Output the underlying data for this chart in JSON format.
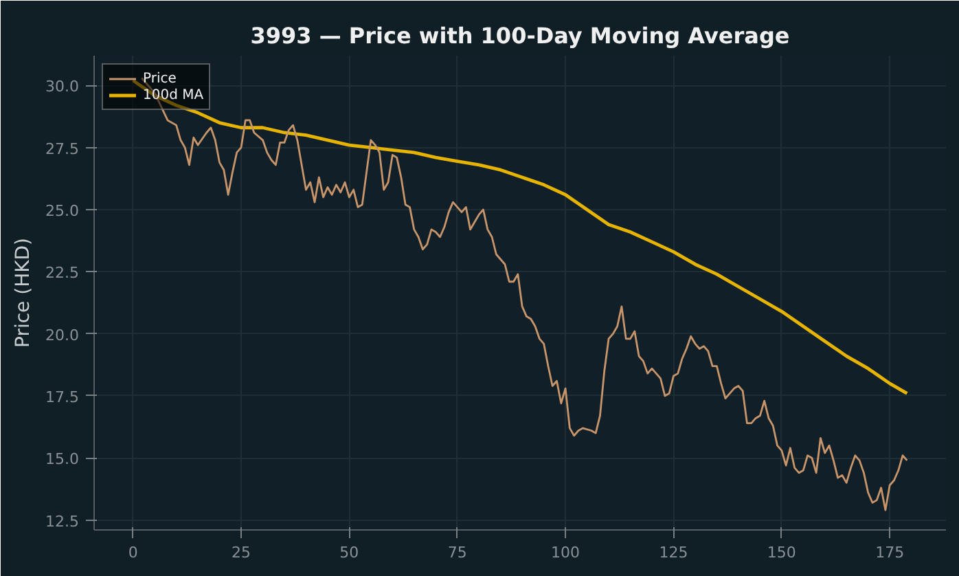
{
  "chart_data": {
    "type": "line",
    "title": "3993 — Price with 100-Day Moving Average",
    "ylabel": "Price (HKD)",
    "xlim": [
      -9,
      188
    ],
    "xticks": [
      0,
      25,
      50,
      75,
      100,
      125,
      150,
      175
    ],
    "ylim": [
      12.1,
      31.2
    ],
    "yticks": [
      {
        "value": 12.5,
        "label": "12.5"
      },
      {
        "value": 15,
        "label": "15.0"
      },
      {
        "value": 17.5,
        "label": "17.5"
      },
      {
        "value": 20,
        "label": "20.0"
      },
      {
        "value": 22.5,
        "label": "22.5"
      },
      {
        "value": 25,
        "label": "25.0"
      },
      {
        "value": 27.5,
        "label": "27.5"
      },
      {
        "value": 30,
        "label": "30.0"
      }
    ],
    "grid": true,
    "legend": "top left",
    "line_style": "solid",
    "marker": "none",
    "series": [
      {
        "name": "Price",
        "color": "#c8956a",
        "x": [
          2,
          5,
          8,
          10,
          11,
          12,
          13,
          14,
          15,
          17,
          18,
          19,
          20,
          21,
          22,
          23,
          24,
          25,
          26,
          27,
          28,
          30,
          31,
          32,
          33,
          34,
          35,
          36,
          37,
          38,
          39,
          40,
          41,
          42,
          43,
          44,
          45,
          46,
          47,
          48,
          49,
          50,
          51,
          52,
          53,
          54,
          55,
          56,
          57,
          58,
          59,
          60,
          61,
          62,
          63,
          64,
          65,
          66,
          67,
          68,
          69,
          70,
          71,
          72,
          73,
          74,
          75,
          76,
          77,
          78,
          79,
          80,
          81,
          82,
          83,
          84,
          85,
          86,
          87,
          88,
          89,
          90,
          91,
          92,
          93,
          94,
          95,
          96,
          97,
          98,
          99,
          100,
          101,
          102,
          103,
          104,
          106,
          107,
          108,
          109,
          110,
          111,
          112,
          113,
          114,
          115,
          116,
          117,
          118,
          119,
          120,
          121,
          122,
          123,
          124,
          125,
          126,
          127,
          128,
          129,
          130,
          131,
          132,
          133,
          134,
          135,
          136,
          137,
          138,
          139,
          140,
          141,
          142,
          143,
          144,
          145,
          146,
          147,
          148,
          149,
          150,
          151,
          152,
          153,
          154,
          155,
          156,
          157,
          158,
          159,
          160,
          161,
          162,
          163,
          164,
          165,
          166,
          167,
          168,
          169,
          170,
          171,
          172,
          173,
          174,
          175,
          176,
          177,
          178,
          179
        ],
        "values": [
          30.3,
          29.7,
          28.6,
          28.4,
          27.8,
          27.5,
          26.8,
          27.9,
          27.6,
          28.1,
          28.3,
          27.8,
          26.9,
          26.6,
          25.6,
          26.5,
          27.3,
          27.5,
          28.6,
          28.6,
          28.1,
          27.8,
          27.3,
          27.0,
          26.8,
          27.7,
          27.7,
          28.2,
          28.4,
          27.8,
          26.8,
          25.8,
          26.1,
          25.3,
          26.3,
          25.5,
          25.9,
          25.6,
          26.0,
          25.7,
          26.1,
          25.5,
          25.8,
          25.1,
          25.2,
          26.5,
          27.8,
          27.6,
          27.3,
          25.8,
          26.1,
          27.2,
          27.1,
          26.3,
          25.2,
          25.1,
          24.2,
          23.9,
          23.4,
          23.6,
          24.2,
          24.1,
          23.9,
          24.3,
          24.9,
          25.3,
          25.1,
          24.9,
          25.1,
          24.2,
          24.5,
          24.8,
          25.0,
          24.2,
          23.9,
          23.2,
          23.0,
          22.8,
          22.1,
          22.1,
          22.4,
          21.1,
          20.7,
          20.6,
          20.3,
          19.8,
          19.6,
          18.7,
          17.9,
          18.1,
          17.2,
          17.8,
          16.2,
          15.9,
          16.1,
          16.2,
          16.1,
          16.0,
          16.7,
          18.5,
          19.8,
          20.0,
          20.3,
          21.1,
          19.8,
          19.8,
          20.1,
          19.1,
          18.9,
          18.4,
          18.6,
          18.4,
          18.2,
          17.5,
          17.6,
          18.3,
          18.4,
          19.0,
          19.4,
          19.9,
          19.6,
          19.4,
          19.5,
          19.3,
          18.7,
          18.7,
          18.0,
          17.4,
          17.6,
          17.8,
          17.9,
          17.7,
          16.4,
          16.4,
          16.6,
          16.7,
          17.3,
          16.6,
          16.3,
          15.5,
          15.3,
          14.7,
          15.4,
          14.6,
          14.4,
          14.5,
          15.1,
          15.0,
          14.4,
          15.8,
          15.2,
          15.5,
          14.9,
          14.2,
          14.3,
          14.0,
          14.6,
          15.1,
          14.9,
          14.4,
          13.6,
          13.2,
          13.3,
          13.8,
          12.9,
          13.9,
          14.1,
          14.5,
          15.1,
          14.9
        ]
      },
      {
        "name": "100d MA",
        "color": "#e6b400",
        "x": [
          0,
          5,
          10,
          15,
          20,
          25,
          30,
          35,
          40,
          45,
          50,
          55,
          60,
          65,
          70,
          75,
          80,
          85,
          90,
          95,
          100,
          105,
          110,
          115,
          120,
          125,
          130,
          135,
          140,
          145,
          150,
          155,
          160,
          165,
          170,
          175,
          179
        ],
        "values": [
          30.2,
          29.6,
          29.2,
          28.9,
          28.5,
          28.3,
          28.3,
          28.1,
          28.0,
          27.8,
          27.6,
          27.5,
          27.4,
          27.3,
          27.1,
          26.95,
          26.8,
          26.6,
          26.3,
          26.0,
          25.6,
          25.0,
          24.4,
          24.1,
          23.7,
          23.3,
          22.8,
          22.4,
          21.9,
          21.4,
          20.9,
          20.3,
          19.7,
          19.1,
          18.6,
          18.0,
          17.6
        ]
      }
    ]
  }
}
